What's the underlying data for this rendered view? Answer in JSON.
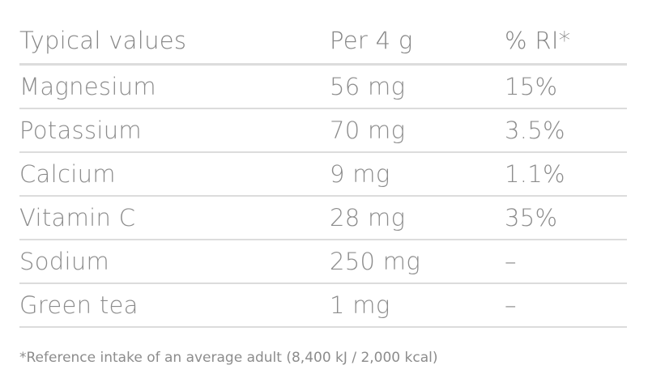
{
  "header": {
    "name": "Typical values",
    "amount": "Per 4 g",
    "ri": "% RI*"
  },
  "rows": [
    {
      "name": "Magnesium",
      "amount": "56 mg",
      "ri": "15%"
    },
    {
      "name": "Potassium",
      "amount": "70 mg",
      "ri": "3.5%"
    },
    {
      "name": "Calcium",
      "amount": "9 mg",
      "ri": "1.1%"
    },
    {
      "name": "Vitamin C",
      "amount": "28 mg",
      "ri": "35%"
    },
    {
      "name": "Sodium",
      "amount": "250 mg",
      "ri": "–"
    },
    {
      "name": "Green tea",
      "amount": "1 mg",
      "ri": "–"
    }
  ],
  "footnote": "*Reference intake of an average adult (8,400 kJ / 2,000 kcal)"
}
